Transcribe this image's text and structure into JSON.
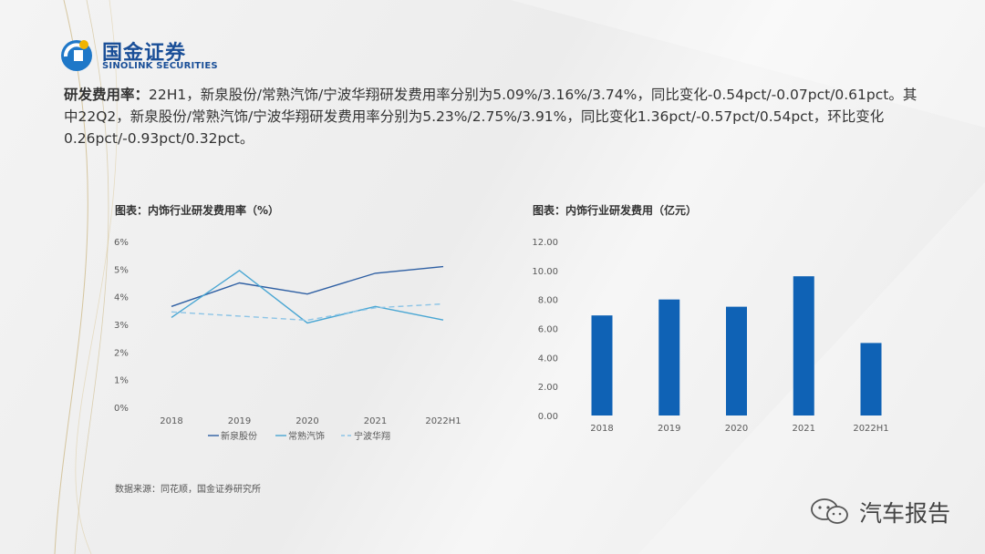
{
  "brand": {
    "name_cn": "国金证券",
    "name_en": "SINOLINK SECURITIES",
    "color": "#1a4f98"
  },
  "summary": {
    "key": "研发费用率：",
    "text": "22H1，新泉股份/常熟汽饰/宁波华翔研发费用率分别为5.09%/3.16%/3.74%，同比变化-0.54pct/-0.07pct/0.61pct。其中22Q2，新泉股份/常熟汽饰/宁波华翔研发费用率分别为5.23%/2.75%/3.91%，同比变化1.36pct/-0.57pct/0.54pct，环比变化0.26pct/-0.93pct/0.32pct。"
  },
  "chart_data": [
    {
      "type": "line",
      "title": "图表：内饰行业研发费用率（%）",
      "categories": [
        "2018",
        "2019",
        "2020",
        "2021",
        "2022H1"
      ],
      "ylim": [
        0,
        6
      ],
      "yticks": [
        "0%",
        "1%",
        "2%",
        "3%",
        "4%",
        "5%",
        "6%"
      ],
      "y_format": "percent",
      "series": [
        {
          "name": "新泉股份",
          "values": [
            3.65,
            4.5,
            4.1,
            4.85,
            5.09
          ],
          "color": "#2e5fa3",
          "dash": "solid"
        },
        {
          "name": "常熟汽饰",
          "values": [
            3.25,
            4.95,
            3.05,
            3.65,
            3.16
          ],
          "color": "#49a6d3",
          "dash": "solid"
        },
        {
          "name": "宁波华翔",
          "values": [
            3.45,
            3.3,
            3.15,
            3.6,
            3.74
          ],
          "color": "#8cc4e6",
          "dash": "dashed"
        }
      ],
      "legend": "bottom",
      "grid": false
    },
    {
      "type": "bar",
      "title": "图表：内饰行业研发费用（亿元）",
      "categories": [
        "2018",
        "2019",
        "2020",
        "2021",
        "2022H1"
      ],
      "values": [
        6.9,
        8.0,
        7.5,
        9.6,
        5.0
      ],
      "ylim": [
        0,
        12
      ],
      "yticks": [
        "0.00",
        "2.00",
        "4.00",
        "6.00",
        "8.00",
        "10.00",
        "12.00"
      ],
      "color": "#0f62b5",
      "grid": false
    }
  ],
  "source": "数据来源：同花顺，国金证券研究所",
  "watermark": {
    "icon": "wechat-icon",
    "label": "汽车报告"
  }
}
